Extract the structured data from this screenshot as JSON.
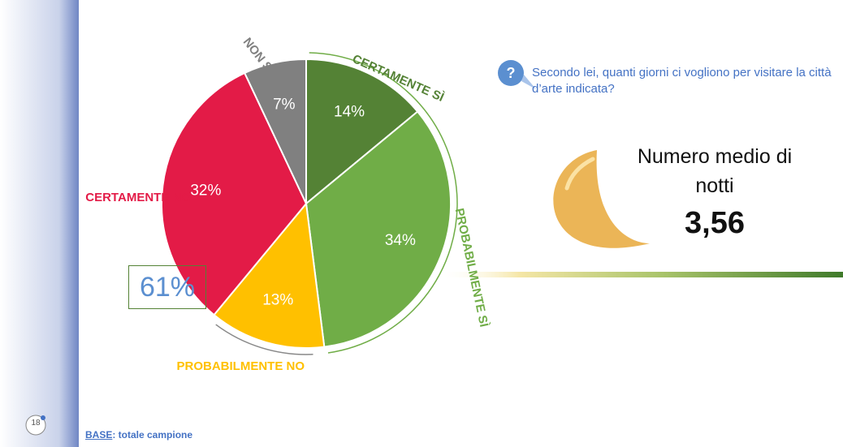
{
  "chart_data": {
    "type": "pie",
    "categories": [
      "CERTAMENTE SÌ",
      "PROBABILMENTE SÌ",
      "PROBABILMENTE NO",
      "CERTAMENTE NO",
      "NON SA"
    ],
    "values": [
      14,
      34,
      13,
      32,
      7
    ],
    "value_labels": [
      "14%",
      "34%",
      "13%",
      "32%",
      "7%"
    ],
    "colors": [
      "#548235",
      "#70ad47",
      "#ffc000",
      "#e31b47",
      "#808080"
    ],
    "annotation": "61%"
  },
  "question": "Secondo lei, quanti giorni ci vogliono per visitare la città d’arte indicata?",
  "kpi_label": "Numero medio di notti",
  "kpi_value": "3,56",
  "page_number": "18",
  "footer": {
    "label": "BASE",
    "text": ": totale campione"
  }
}
